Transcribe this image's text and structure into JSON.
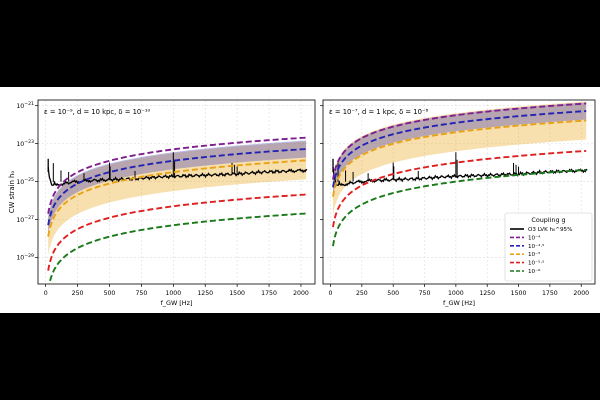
{
  "chart_data": [
    {
      "type": "line",
      "annotation": "ε = 10⁻⁹,  d = 10 kpc,  δ = 10⁻¹⁰",
      "xlabel": "f_GW  [Hz]",
      "ylabel": "CW strain h₀",
      "xlim": [
        -60,
        2110
      ],
      "ylim_log10": [
        -30.4,
        -20.7
      ],
      "xlog": false,
      "ylog": true,
      "grid": true,
      "xticks": [
        0,
        250,
        500,
        750,
        1000,
        1250,
        1500,
        1750,
        2000
      ],
      "yticks_log10": [
        -21,
        -23,
        -25,
        -27,
        -29
      ],
      "series": [
        {
          "name": "O3 LVK h₀^95%",
          "kind": "sensitivity",
          "color": "#000000",
          "x": [
            20,
            30,
            40,
            55,
            70,
            90,
            110,
            140,
            180,
            250,
            350,
            500,
            700,
            900,
            1100,
            1300,
            1500,
            1700,
            1900,
            2048
          ],
          "log10_y": [
            -24.3,
            -24.8,
            -25.0,
            -25.2,
            -25.05,
            -25.2,
            -25.15,
            -25.1,
            -25.05,
            -25.0,
            -24.95,
            -24.9,
            -24.85,
            -24.75,
            -24.7,
            -24.65,
            -24.6,
            -24.5,
            -24.45,
            -24.4
          ]
        },
        {
          "name": "10⁻⁴",
          "log10_coupling": -4,
          "color": "#7f1f8f",
          "log10_at_2000": -22.7,
          "band_halfwidth": 0
        },
        {
          "name": "10⁻⁴·⁵",
          "log10_coupling": -4.5,
          "color": "#2424b3",
          "log10_at_2000": -23.3,
          "band_halfwidth": 0.45
        },
        {
          "name": "10⁻⁵",
          "log10_coupling": -5,
          "color": "#e8a317",
          "log10_at_2000": -23.9,
          "band_halfwidth": 1.0
        },
        {
          "name": "10⁻⁵·⁵",
          "log10_coupling": -5.5,
          "color": "#e02020",
          "log10_at_2000": -25.7,
          "band_halfwidth": 0
        },
        {
          "name": "10⁻⁶",
          "log10_coupling": -6,
          "color": "#1a7a1a",
          "log10_at_2000": -26.7,
          "band_halfwidth": 0
        }
      ]
    },
    {
      "type": "line",
      "annotation": "ε = 10⁻⁷,  d = 1 kpc,  δ = 10⁻⁸",
      "xlabel": "f_GW  [Hz]",
      "xlim": [
        -60,
        2110
      ],
      "ylim_log10": [
        -30.4,
        -20.7
      ],
      "xlog": false,
      "ylog": true,
      "grid": true,
      "xticks": [
        0,
        250,
        500,
        750,
        1000,
        1250,
        1500,
        1750,
        2000
      ],
      "yticks_log10": [
        -21,
        -23,
        -25,
        -27,
        -29
      ],
      "series": [
        {
          "name": "O3 LVK h₀^95%",
          "kind": "sensitivity",
          "color": "#000000",
          "x": [
            20,
            30,
            40,
            55,
            70,
            90,
            110,
            140,
            180,
            250,
            350,
            500,
            700,
            900,
            1100,
            1300,
            1500,
            1700,
            1900,
            2048
          ],
          "log10_y": [
            -24.3,
            -24.8,
            -25.0,
            -25.2,
            -25.05,
            -25.2,
            -25.15,
            -25.1,
            -25.05,
            -25.0,
            -24.95,
            -24.9,
            -24.85,
            -24.75,
            -24.7,
            -24.65,
            -24.6,
            -24.5,
            -24.45,
            -24.4
          ]
        },
        {
          "name": "10⁻⁴",
          "log10_coupling": -4,
          "color": "#7f1f8f",
          "log10_at_2000": -20.9,
          "band_halfwidth": 0
        },
        {
          "name": "10⁻⁴·⁵",
          "log10_coupling": -4.5,
          "color": "#2424b3",
          "log10_at_2000": -21.3,
          "band_halfwidth": 0.45
        },
        {
          "name": "10⁻⁵",
          "log10_coupling": -5,
          "color": "#e8a317",
          "log10_at_2000": -21.8,
          "band_halfwidth": 1.0
        },
        {
          "name": "10⁻⁵·⁵",
          "log10_coupling": -5.5,
          "color": "#e02020",
          "log10_at_2000": -23.4,
          "band_halfwidth": 0
        },
        {
          "name": "10⁻⁶",
          "log10_coupling": -6,
          "color": "#1a7a1a",
          "log10_at_2000": -24.4,
          "band_halfwidth": 0
        }
      ]
    }
  ],
  "legend": {
    "title": "Coupling g",
    "placement": "lower-right of right panel",
    "entries": [
      {
        "label": "O3 LVK h₀^95%",
        "color": "#000000",
        "style": "solid"
      },
      {
        "label": "10⁻⁴",
        "color": "#7f1f8f",
        "style": "dashed"
      },
      {
        "label": "10⁻⁴·⁵",
        "color": "#2424b3",
        "style": "dashed"
      },
      {
        "label": "10⁻⁵",
        "color": "#e8a317",
        "style": "dashed"
      },
      {
        "label": "10⁻⁵·⁵",
        "color": "#e02020",
        "style": "dashed"
      },
      {
        "label": "10⁻⁶",
        "color": "#1a7a1a",
        "style": "dashed"
      }
    ]
  }
}
